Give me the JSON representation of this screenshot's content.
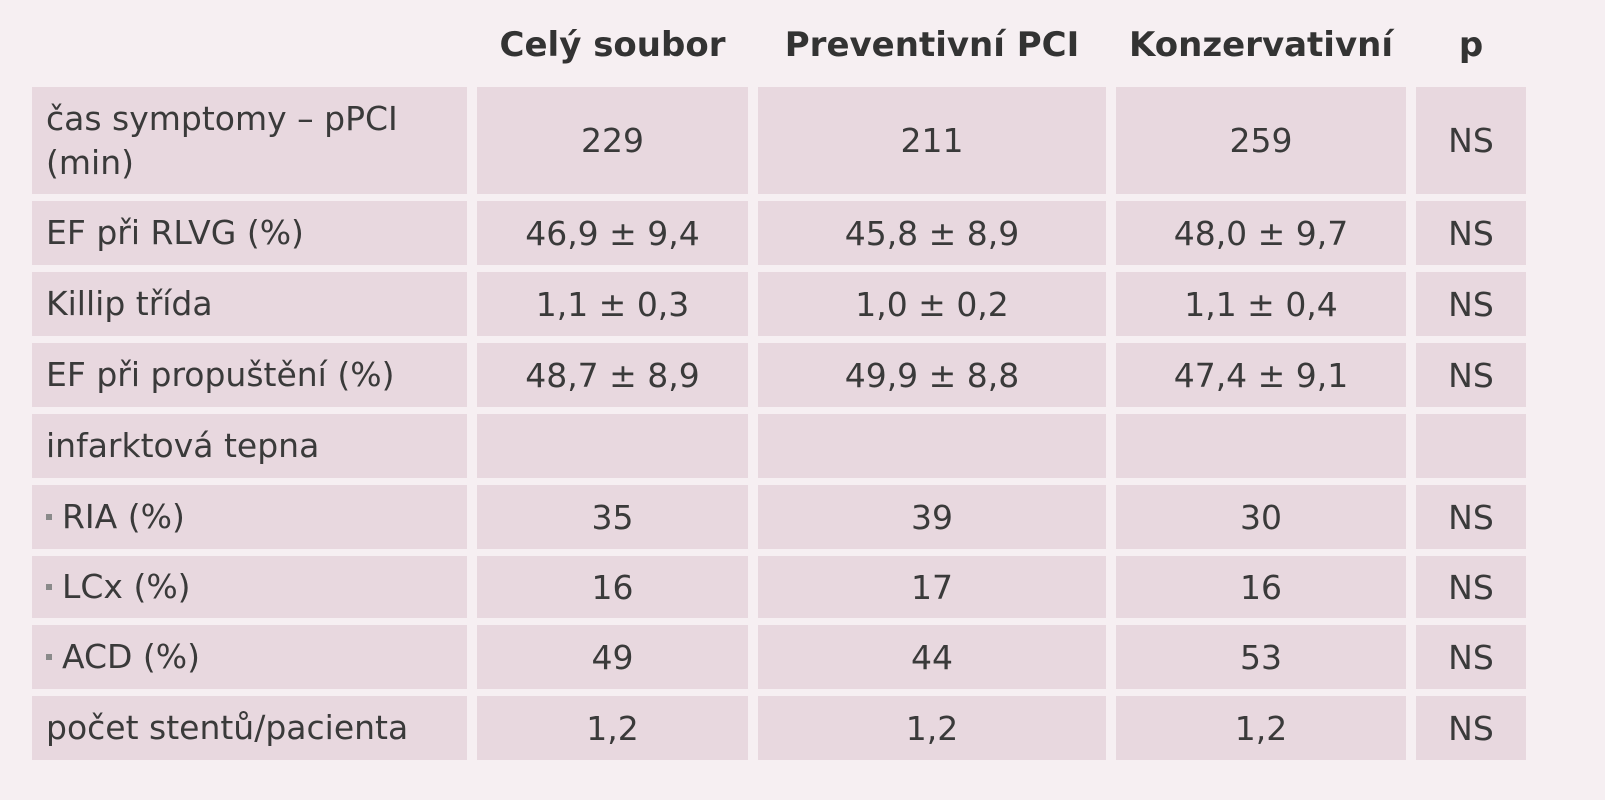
{
  "table": {
    "columns": [
      "Celý soubor",
      "Preventivní PCI",
      "Konzervativní",
      "p"
    ],
    "rows": [
      {
        "label": "čas symptomy – pPCI (min)",
        "cells": [
          "229",
          "211",
          "259",
          "NS"
        ]
      },
      {
        "label": "EF při RLVG (%)",
        "cells": [
          "46,9 ± 9,4",
          "45,8 ± 8,9",
          "48,0 ± 9,7",
          "NS"
        ]
      },
      {
        "label": "Killip třída",
        "cells": [
          "1,1 ± 0,3",
          "1,0 ± 0,2",
          "1,1 ± 0,4",
          "NS"
        ]
      },
      {
        "label": "EF při propuštění (%)",
        "cells": [
          "48,7 ± 8,9",
          "49,9 ± 8,8",
          "47,4 ± 9,1",
          "NS"
        ]
      },
      {
        "label": "infarktová tepna",
        "cells": []
      },
      {
        "label": "RIA (%)",
        "bullet": true,
        "cells": [
          "35",
          "39",
          "30",
          "NS"
        ]
      },
      {
        "label": "LCx (%)",
        "bullet": true,
        "cells": [
          "16",
          "17",
          "16",
          "NS"
        ]
      },
      {
        "label": "ACD (%)",
        "bullet": true,
        "cells": [
          "49",
          "44",
          "53",
          "NS"
        ]
      },
      {
        "label": "počet stentů/pacienta",
        "cells": [
          "1,2",
          "1,2",
          "1,2",
          "NS"
        ]
      }
    ]
  }
}
